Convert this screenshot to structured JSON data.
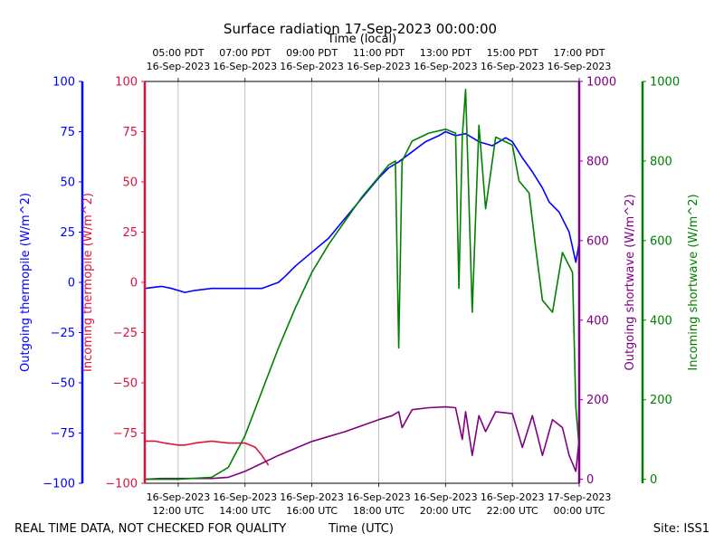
{
  "chart_data": {
    "type": "line",
    "title": "Surface radiation 17-Sep-2023 00:00:00",
    "top_axis_label": "Time (local)",
    "xlabel": "Time (UTC)",
    "footer_left": "REAL TIME DATA, NOT CHECKED FOR QUALITY",
    "footer_right": "Site: ISS1",
    "x_range_hours_utc": [
      11,
      24
    ],
    "x_ticks_bottom": [
      {
        "hour": 12,
        "line1": "16-Sep-2023",
        "line2": "12:00 UTC"
      },
      {
        "hour": 14,
        "line1": "16-Sep-2023",
        "line2": "14:00 UTC"
      },
      {
        "hour": 16,
        "line1": "16-Sep-2023",
        "line2": "16:00 UTC"
      },
      {
        "hour": 18,
        "line1": "16-Sep-2023",
        "line2": "18:00 UTC"
      },
      {
        "hour": 20,
        "line1": "16-Sep-2023",
        "line2": "20:00 UTC"
      },
      {
        "hour": 22,
        "line1": "16-Sep-2023",
        "line2": "22:00 UTC"
      },
      {
        "hour": 24,
        "line1": "17-Sep-2023",
        "line2": "00:00 UTC"
      }
    ],
    "x_ticks_top": [
      {
        "hour": 12,
        "line1": "05:00 PDT",
        "line2": "16-Sep-2023"
      },
      {
        "hour": 14,
        "line1": "07:00 PDT",
        "line2": "16-Sep-2023"
      },
      {
        "hour": 16,
        "line1": "09:00 PDT",
        "line2": "16-Sep-2023"
      },
      {
        "hour": 18,
        "line1": "11:00 PDT",
        "line2": "16-Sep-2023"
      },
      {
        "hour": 20,
        "line1": "13:00 PDT",
        "line2": "16-Sep-2023"
      },
      {
        "hour": 22,
        "line1": "15:00 PDT",
        "line2": "16-Sep-2023"
      },
      {
        "hour": 24,
        "line1": "17:00 PDT",
        "line2": "16-Sep-2023"
      }
    ],
    "axes": {
      "thermopile_out": {
        "label": "Outgoing thermopile (W/m^2)",
        "color": "#0000ff",
        "ylim": [
          -100,
          100
        ],
        "ticks": [
          -100,
          -75,
          -50,
          -25,
          0,
          25,
          50,
          75,
          100
        ]
      },
      "thermopile_in": {
        "label": "Incoming thermopile (W/m^2)",
        "color": "#dc143c",
        "ylim": [
          -100,
          100
        ],
        "ticks": [
          -100,
          -75,
          -50,
          -25,
          0,
          25,
          50,
          75,
          100
        ]
      },
      "shortwave_out": {
        "label": "Outgoing shortwave (W/m^2)",
        "color": "#800080",
        "ylim": [
          -10,
          1000
        ],
        "ticks": [
          0,
          200,
          400,
          600,
          800,
          1000
        ]
      },
      "shortwave_in": {
        "label": "Incoming shortwave (W/m^2)",
        "color": "#008000",
        "ylim": [
          -10,
          1000
        ],
        "ticks": [
          0,
          200,
          400,
          600,
          800,
          1000
        ]
      }
    },
    "series": [
      {
        "name": "Outgoing thermopile",
        "axis": "thermopile_out",
        "color": "#0000ff",
        "x": [
          11,
          11.5,
          11.8,
          12.2,
          12.5,
          13,
          13.5,
          14,
          14.5,
          15,
          15.2,
          15.5,
          16,
          16.5,
          17,
          17.5,
          18,
          18.3,
          18.6,
          19,
          19.4,
          19.8,
          20,
          20.3,
          20.6,
          21,
          21.4,
          21.8,
          22,
          22.3,
          22.6,
          22.9,
          23.1,
          23.4,
          23.7,
          23.9,
          24
        ],
        "values": [
          -3,
          -2,
          -3,
          -5,
          -4,
          -3,
          -3,
          -3,
          -3,
          0,
          3,
          8,
          15,
          22,
          32,
          42,
          52,
          57,
          60,
          65,
          70,
          73,
          75,
          73,
          74,
          70,
          68,
          72,
          70,
          62,
          55,
          47,
          40,
          35,
          25,
          10,
          20
        ]
      },
      {
        "name": "Incoming thermopile",
        "axis": "thermopile_in",
        "color": "#dc143c",
        "x": [
          11,
          11.3,
          11.6,
          12,
          12.2,
          12.5,
          13,
          13.5,
          14,
          14.3,
          14.5,
          14.7
        ],
        "values": [
          -79,
          -79,
          -80,
          -81,
          -81,
          -80,
          -79,
          -80,
          -80,
          -82,
          -86,
          -91
        ]
      },
      {
        "name": "Outgoing shortwave",
        "axis": "shortwave_out",
        "color": "#800080",
        "x": [
          11,
          11.5,
          12,
          13,
          13.5,
          14,
          14.5,
          15,
          16,
          17,
          18,
          18.4,
          18.6,
          18.7,
          19,
          19.5,
          20,
          20.3,
          20.5,
          20.6,
          20.8,
          21,
          21.2,
          21.5,
          22,
          22.3,
          22.6,
          22.9,
          23.2,
          23.5,
          23.7,
          23.9,
          24
        ],
        "values": [
          0,
          2,
          2,
          2,
          5,
          20,
          40,
          60,
          95,
          120,
          150,
          160,
          170,
          130,
          175,
          180,
          182,
          180,
          100,
          170,
          60,
          160,
          120,
          170,
          165,
          80,
          160,
          60,
          150,
          130,
          60,
          20,
          100
        ]
      },
      {
        "name": "Incoming shortwave",
        "axis": "shortwave_in",
        "color": "#008000",
        "x": [
          11,
          12,
          13,
          13.5,
          14,
          14.5,
          15,
          15.5,
          16,
          16.5,
          17,
          17.5,
          18,
          18.3,
          18.5,
          18.6,
          18.7,
          19,
          19.5,
          20,
          20.3,
          20.4,
          20.5,
          20.6,
          20.8,
          21,
          21.2,
          21.5,
          22,
          22.2,
          22.5,
          22.7,
          22.9,
          23.2,
          23.5,
          23.8,
          23.9,
          24
        ],
        "values": [
          0,
          0,
          5,
          30,
          110,
          220,
          330,
          430,
          520,
          590,
          650,
          710,
          760,
          790,
          800,
          330,
          800,
          850,
          870,
          880,
          870,
          480,
          860,
          980,
          420,
          890,
          680,
          860,
          840,
          750,
          720,
          580,
          450,
          420,
          570,
          520,
          180,
          80
        ]
      }
    ]
  }
}
